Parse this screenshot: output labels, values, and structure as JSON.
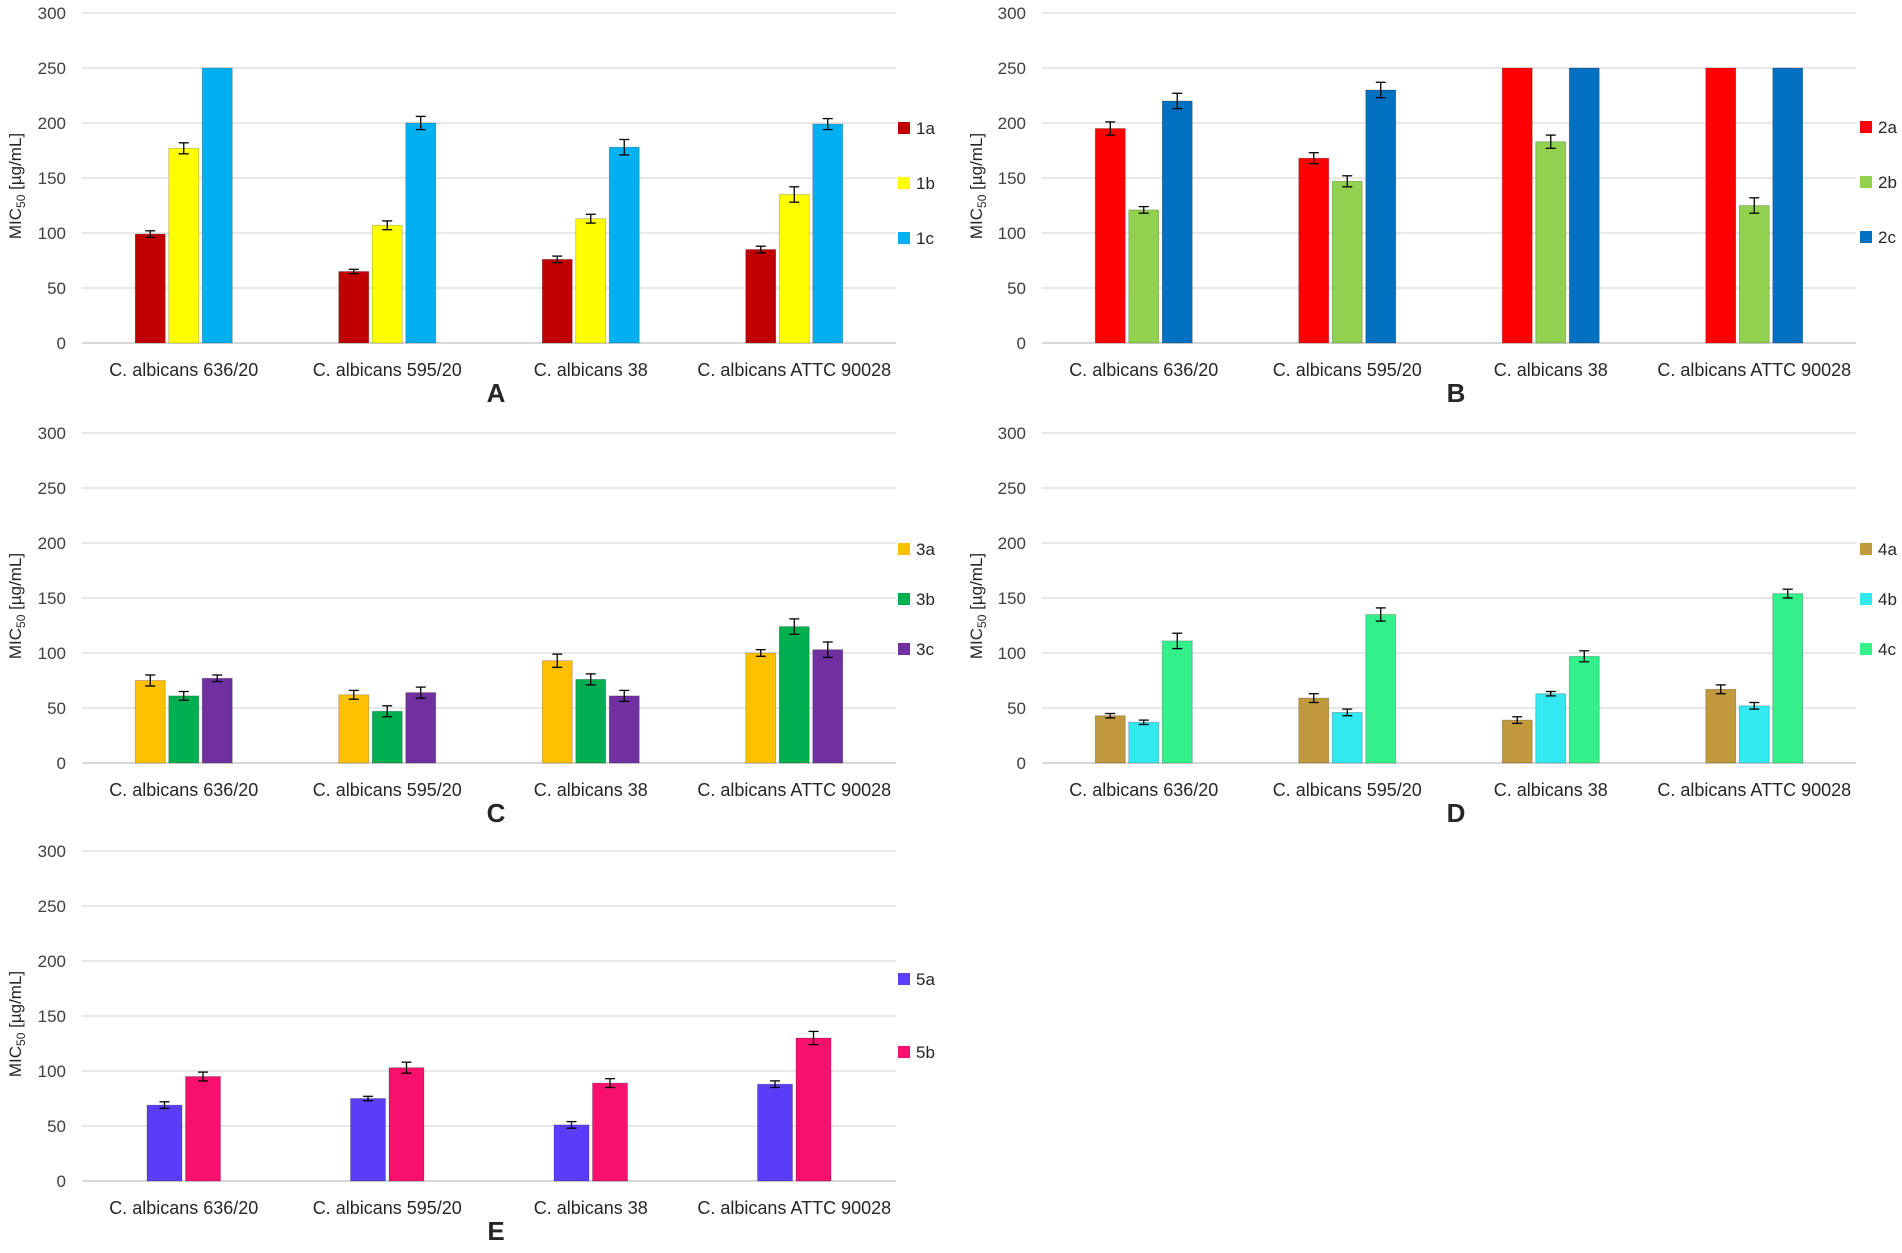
{
  "chart_data": [
    {
      "type": "bar",
      "panel_label": "A",
      "ylabel": "MIC",
      "ylabel_sub": "50",
      "ylabel_unit": " [µg/mL]",
      "ylim": [
        0,
        300
      ],
      "yticks": [
        "0",
        "50",
        "100",
        "150",
        "200",
        "250",
        "300"
      ],
      "categories": [
        "C. albicans 636/20",
        "C. albicans 595/20",
        "C. albicans 38",
        "C. albicans ATTC 90028"
      ],
      "series": [
        {
          "name": "1a",
          "color": "#c00000",
          "values": [
            99,
            65,
            76,
            85
          ],
          "errors": [
            3,
            2,
            3,
            3
          ]
        },
        {
          "name": "1b",
          "color": "#ffff00",
          "values": [
            177,
            107,
            113,
            135
          ],
          "errors": [
            5,
            4,
            4,
            7
          ]
        },
        {
          "name": "1c",
          "color": "#00b0f0",
          "values": [
            250,
            200,
            178,
            199
          ],
          "errors": [
            0,
            6,
            7,
            5
          ]
        }
      ]
    },
    {
      "type": "bar",
      "panel_label": "B",
      "ylabel": "MIC",
      "ylabel_sub": "50",
      "ylabel_unit": " [µg/mL]",
      "ylim": [
        0,
        300
      ],
      "yticks": [
        "0",
        "50",
        "100",
        "150",
        "200",
        "250",
        "300"
      ],
      "categories": [
        "C. albicans 636/20",
        "C. albicans 595/20",
        "C. albicans 38",
        "C. albicans ATTC 90028"
      ],
      "series": [
        {
          "name": "2a",
          "color": "#ff0000",
          "values": [
            195,
            168,
            250,
            250
          ],
          "errors": [
            6,
            5,
            0,
            0
          ]
        },
        {
          "name": "2b",
          "color": "#92d050",
          "values": [
            121,
            147,
            183,
            125
          ],
          "errors": [
            3,
            5,
            6,
            7
          ]
        },
        {
          "name": "2c",
          "color": "#0070c0",
          "values": [
            220,
            230,
            250,
            250
          ],
          "errors": [
            7,
            7,
            0,
            0
          ]
        }
      ]
    },
    {
      "type": "bar",
      "panel_label": "C",
      "ylabel": "MIC",
      "ylabel_sub": "50",
      "ylabel_unit": " [µg/mL]",
      "ylim": [
        0,
        300
      ],
      "yticks": [
        "0",
        "50",
        "100",
        "150",
        "200",
        "250",
        "300"
      ],
      "categories": [
        "C. albicans 636/20",
        "C. albicans 595/20",
        "C. albicans 38",
        "C. albicans ATTC 90028"
      ],
      "series": [
        {
          "name": "3a",
          "color": "#ffc000",
          "values": [
            75,
            62,
            93,
            100
          ],
          "errors": [
            5,
            4,
            6,
            3
          ]
        },
        {
          "name": "3b",
          "color": "#00b050",
          "values": [
            61,
            47,
            76,
            124
          ],
          "errors": [
            4,
            5,
            5,
            7
          ]
        },
        {
          "name": "3c",
          "color": "#7030a0",
          "values": [
            77,
            64,
            61,
            103
          ],
          "errors": [
            3,
            5,
            5,
            7
          ]
        }
      ]
    },
    {
      "type": "bar",
      "panel_label": "D",
      "ylabel": "MIC",
      "ylabel_sub": "50",
      "ylabel_unit": " [µg/mL]",
      "ylim": [
        0,
        300
      ],
      "yticks": [
        "0",
        "50",
        "100",
        "150",
        "200",
        "250",
        "300"
      ],
      "categories": [
        "C. albicans 636/20",
        "C. albicans 595/20",
        "C. albicans 38",
        "C. albicans ATTC 90028"
      ],
      "series": [
        {
          "name": "4a",
          "color": "#c09a3c",
          "values": [
            43,
            59,
            39,
            67
          ],
          "errors": [
            2,
            4,
            3,
            4
          ]
        },
        {
          "name": "4b",
          "color": "#33e8f0",
          "values": [
            37,
            46,
            63,
            52
          ],
          "errors": [
            2,
            3,
            2,
            3
          ]
        },
        {
          "name": "4c",
          "color": "#33f08a",
          "values": [
            111,
            135,
            97,
            154
          ],
          "errors": [
            7,
            6,
            5,
            4
          ]
        }
      ]
    },
    {
      "type": "bar",
      "panel_label": "E",
      "ylabel": "MIC",
      "ylabel_sub": "50",
      "ylabel_unit": " [µg/mL]",
      "ylim": [
        0,
        300
      ],
      "yticks": [
        "0",
        "50",
        "100",
        "150",
        "200",
        "250",
        "300"
      ],
      "categories": [
        "C. albicans 636/20",
        "C. albicans 595/20",
        "C. albicans 38",
        "C. albicans ATTC 90028"
      ],
      "series": [
        {
          "name": "5a",
          "color": "#5b3cf8",
          "values": [
            69,
            75,
            51,
            88
          ],
          "errors": [
            3,
            2,
            3,
            3
          ]
        },
        {
          "name": "5b",
          "color": "#f7106e",
          "values": [
            95,
            103,
            89,
            130
          ],
          "errors": [
            4,
            5,
            4,
            6
          ]
        }
      ]
    }
  ]
}
